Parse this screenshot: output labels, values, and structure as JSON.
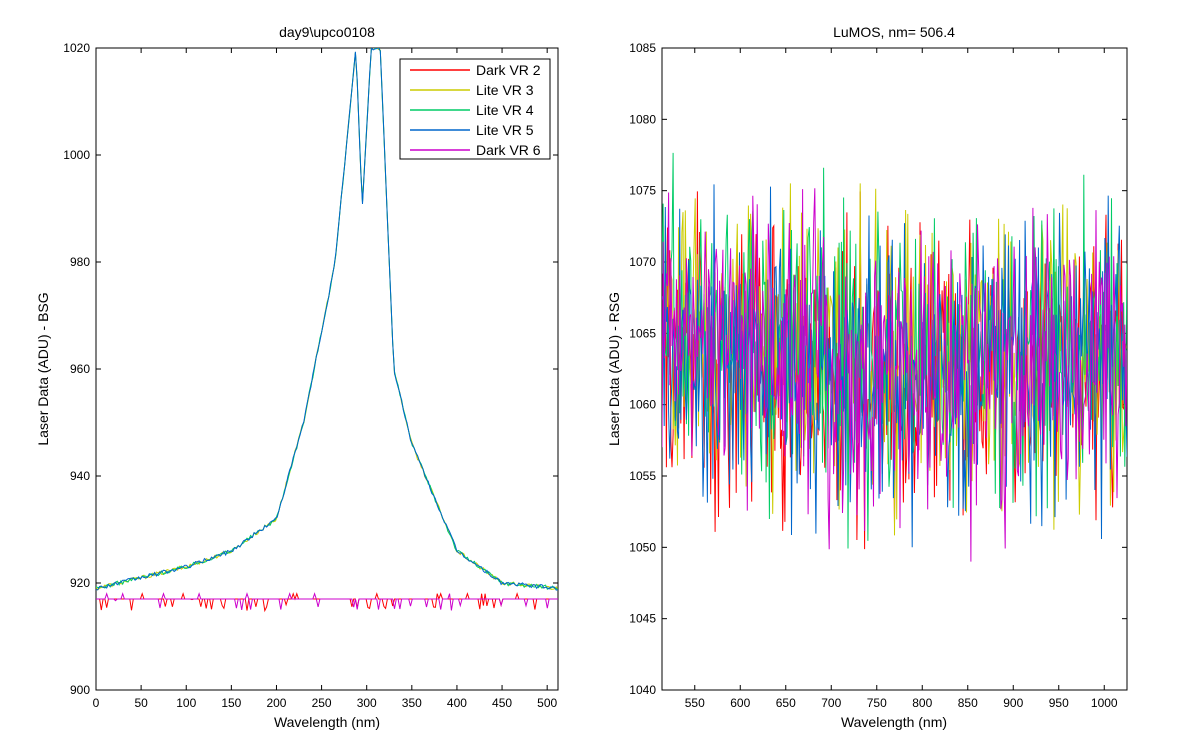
{
  "figure": {
    "background": "#ffffff",
    "series_colors": [
      "#ff0000",
      "#cccc00",
      "#00cc66",
      "#0066cc",
      "#cc00cc"
    ]
  },
  "chart_data": [
    {
      "type": "line",
      "title": "day9\\upco0108",
      "xlabel": "Wavelength (nm)",
      "ylabel": "Laser Data (ADU) - BSG",
      "xlim": [
        0,
        512
      ],
      "ylim": [
        900,
        1020
      ],
      "xticks": [
        0,
        50,
        100,
        150,
        200,
        250,
        300,
        350,
        400,
        450,
        500
      ],
      "yticks": [
        900,
        920,
        940,
        960,
        980,
        1000,
        1020
      ],
      "grid": false,
      "legend_position": "top-right",
      "legend": [
        "Dark VR 2",
        "Lite VR 3",
        "Lite VR 4",
        "Lite VR 5",
        "Dark VR 6"
      ],
      "series": [
        {
          "name": "Dark VR 2",
          "color": "#ff0000",
          "x": [
            0,
            50,
            100,
            150,
            200,
            250,
            300,
            350,
            400,
            450,
            512
          ],
          "y": [
            917,
            917,
            917,
            917,
            917,
            917,
            917,
            917,
            917,
            917,
            917
          ]
        },
        {
          "name": "Lite VR 3",
          "color": "#cccc00",
          "x": [
            0,
            50,
            100,
            150,
            200,
            230,
            250,
            265,
            288,
            295,
            305,
            315,
            330,
            350,
            400,
            450,
            512
          ],
          "y": [
            919,
            921,
            923,
            926,
            932,
            950,
            967,
            980,
            1020,
            990,
            1020,
            1020,
            960,
            946,
            926,
            920,
            919
          ]
        },
        {
          "name": "Lite VR 4",
          "color": "#00cc66",
          "x": [
            0,
            50,
            100,
            150,
            200,
            230,
            250,
            265,
            288,
            295,
            305,
            315,
            330,
            350,
            400,
            450,
            512
          ],
          "y": [
            919,
            921,
            923,
            926,
            932,
            950,
            967,
            980,
            1020,
            990,
            1020,
            1020,
            960,
            946,
            926,
            920,
            919
          ]
        },
        {
          "name": "Lite VR 5",
          "color": "#0066cc",
          "x": [
            0,
            50,
            100,
            150,
            200,
            230,
            250,
            265,
            288,
            295,
            305,
            315,
            330,
            350,
            400,
            450,
            512
          ],
          "y": [
            919,
            921,
            923,
            926,
            932,
            950,
            967,
            980,
            1020,
            990,
            1020,
            1020,
            960,
            946,
            926,
            920,
            919
          ]
        },
        {
          "name": "Dark VR 6",
          "color": "#cc00cc",
          "x": [
            0,
            50,
            100,
            150,
            200,
            250,
            300,
            350,
            400,
            450,
            512
          ],
          "y": [
            917,
            917,
            917,
            917,
            917,
            917,
            917,
            917,
            917,
            917,
            917
          ]
        }
      ]
    },
    {
      "type": "line",
      "title": "LuMOS, nm= 506.4",
      "xlabel": "Wavelength (nm)",
      "ylabel": "Laser Data (ADU) - RSG",
      "xlim": [
        514,
        1025
      ],
      "ylim": [
        1040,
        1085
      ],
      "xticks": [
        550,
        600,
        650,
        700,
        750,
        800,
        850,
        900,
        950,
        1000
      ],
      "yticks": [
        1040,
        1045,
        1050,
        1055,
        1060,
        1065,
        1070,
        1075,
        1080,
        1085
      ],
      "grid": false,
      "noise_range": [
        1049,
        1081
      ],
      "series": [
        {
          "name": "Dark VR 2",
          "color": "#ff0000",
          "x": [
            514,
            700,
            1025
          ],
          "y": [
            1064,
            1062,
            1063
          ]
        },
        {
          "name": "Lite VR 3",
          "color": "#cccc00",
          "x": [
            514,
            700,
            1025
          ],
          "y": [
            1065,
            1063,
            1063
          ]
        },
        {
          "name": "Lite VR 4",
          "color": "#00cc66",
          "x": [
            514,
            700,
            1025
          ],
          "y": [
            1065,
            1063,
            1064
          ]
        },
        {
          "name": "Lite VR 5",
          "color": "#0066cc",
          "x": [
            514,
            700,
            1025
          ],
          "y": [
            1064,
            1062,
            1063
          ]
        },
        {
          "name": "Dark VR 6",
          "color": "#cc00cc",
          "x": [
            514,
            700,
            1025
          ],
          "y": [
            1064,
            1062,
            1063
          ]
        }
      ]
    }
  ]
}
